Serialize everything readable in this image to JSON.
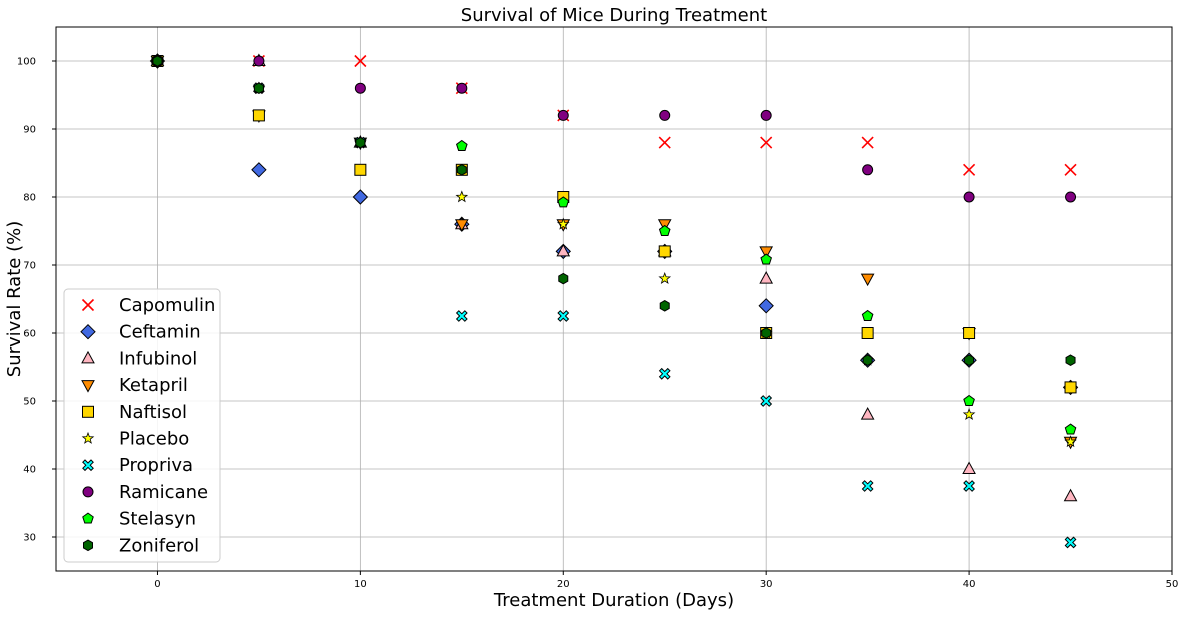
{
  "chart_data": {
    "type": "scatter",
    "title": "Survival of Mice During Treatment",
    "xlabel": "Treatment Duration (Days)",
    "ylabel": "Survival Rate (%)",
    "xlim": [
      -5,
      50
    ],
    "ylim": [
      25,
      105
    ],
    "xticks": [
      0,
      10,
      20,
      30,
      40,
      50
    ],
    "yticks": [
      30,
      40,
      50,
      60,
      70,
      80,
      90,
      100
    ],
    "grid": true,
    "legend_position": "lower-left",
    "x": [
      0,
      5,
      10,
      15,
      20,
      25,
      30,
      35,
      40,
      45
    ],
    "series": [
      {
        "name": "Capomulin",
        "marker": "x",
        "color": "#ff0000",
        "values": [
          100,
          100,
          100,
          96,
          92,
          88,
          88,
          88,
          84,
          84
        ]
      },
      {
        "name": "Ceftamin",
        "marker": "diamond",
        "color": "#4169e1",
        "values": [
          100,
          84,
          80,
          76,
          72,
          72,
          64,
          56,
          56,
          52
        ]
      },
      {
        "name": "Infubinol",
        "marker": "triangle-up",
        "color": "#ffb6c1",
        "values": [
          100,
          100,
          88,
          76,
          72,
          72,
          68,
          48,
          40,
          36
        ]
      },
      {
        "name": "Ketapril",
        "marker": "triangle-down",
        "color": "#ff8c00",
        "values": [
          100,
          92,
          88,
          76,
          76,
          76,
          72,
          68,
          60,
          44
        ]
      },
      {
        "name": "Naftisol",
        "marker": "square",
        "color": "#ffd700",
        "values": [
          100,
          92,
          84,
          84,
          80,
          72,
          60,
          60,
          60,
          52
        ]
      },
      {
        "name": "Placebo",
        "marker": "star",
        "color": "#ffff00",
        "values": [
          100,
          96,
          88,
          80,
          76,
          68,
          60,
          56,
          48,
          44
        ]
      },
      {
        "name": "Propriva",
        "marker": "x-filled",
        "color": "#00ffff",
        "values": [
          100,
          96,
          88,
          62.5,
          62.5,
          54,
          50,
          37.5,
          37.5,
          29.2
        ]
      },
      {
        "name": "Ramicane",
        "marker": "circle",
        "color": "#800080",
        "values": [
          100,
          100,
          96,
          96,
          92,
          92,
          92,
          84,
          80,
          80
        ]
      },
      {
        "name": "Stelasyn",
        "marker": "pentagon",
        "color": "#00ff00",
        "values": [
          100,
          96,
          88,
          87.5,
          79.2,
          75,
          70.8,
          62.5,
          50,
          45.8
        ]
      },
      {
        "name": "Zoniferol",
        "marker": "hexagon",
        "color": "#006400",
        "values": [
          100,
          96,
          88,
          84,
          68,
          64,
          60,
          56,
          56,
          56
        ]
      }
    ]
  }
}
